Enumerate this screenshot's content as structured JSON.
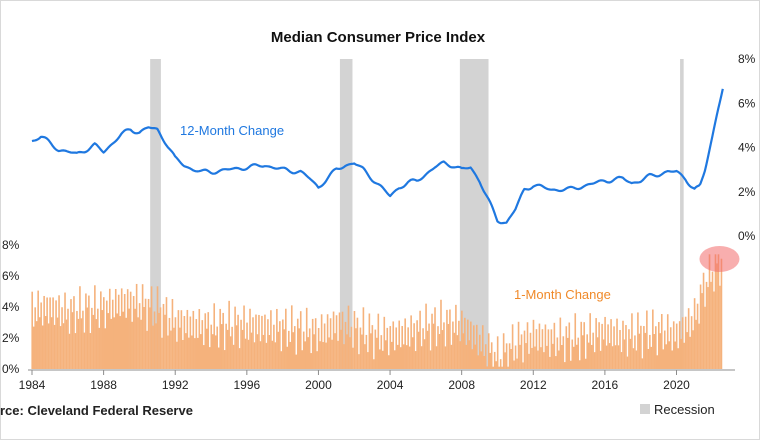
{
  "chart_data": {
    "type": "line",
    "title": "Median Consumer Price Index",
    "source": "rce: Cleveland Federal Reserve",
    "x_ticks": [
      "1984",
      "1988",
      "1992",
      "1996",
      "2000",
      "2004",
      "2008",
      "2012",
      "2016",
      "2020"
    ],
    "right_axis_ticks": [
      "0%",
      "2%",
      "4%",
      "6%",
      "8%"
    ],
    "left_axis_ticks": [
      "0%",
      "2%",
      "4%",
      "6%",
      "8%"
    ],
    "recession_legend": "Recession",
    "recessions": [
      [
        1990.6,
        1991.2
      ],
      [
        2001.2,
        2001.9
      ],
      [
        2007.9,
        2009.5
      ],
      [
        2020.2,
        2020.4
      ]
    ],
    "series": [
      {
        "name": "12-Month Change",
        "color": "#1f78e0",
        "axis": "right",
        "ylim": [
          0,
          8
        ],
        "x": [
          1984,
          1984.5,
          1985,
          1985.5,
          1986,
          1986.5,
          1987,
          1987.5,
          1988,
          1988.5,
          1989,
          1989.5,
          1990,
          1990.5,
          1991,
          1991.5,
          1992,
          1992.5,
          1993,
          1993.5,
          1994,
          1995,
          1996,
          1997,
          1998,
          1999,
          1999.5,
          2000,
          2000.5,
          2001,
          2001.5,
          2002,
          2002.5,
          2003,
          2003.5,
          2004,
          2004.5,
          2005,
          2005.5,
          2006,
          2006.5,
          2007,
          2007.5,
          2008,
          2008.5,
          2009,
          2009.5,
          2010,
          2010.5,
          2011,
          2011.5,
          2012,
          2012.5,
          2013,
          2014,
          2015,
          2016,
          2017,
          2017.5,
          2018,
          2018.5,
          2019,
          2019.5,
          2020,
          2020.5,
          2021,
          2021.3,
          2021.6,
          2022,
          2022.3,
          2022.6
        ],
        "values": [
          4.3,
          4.5,
          4.2,
          3.9,
          3.8,
          3.7,
          3.9,
          4.1,
          3.8,
          4.2,
          4.6,
          4.8,
          4.7,
          4.9,
          4.8,
          4.2,
          3.5,
          3.2,
          3.0,
          2.9,
          2.9,
          3.0,
          3.1,
          3.2,
          3.0,
          2.9,
          2.6,
          2.2,
          2.6,
          3.0,
          3.2,
          3.3,
          3.0,
          2.6,
          2.2,
          1.8,
          2.2,
          2.4,
          2.5,
          2.8,
          3.1,
          3.3,
          3.2,
          3.0,
          3.1,
          2.5,
          1.6,
          0.7,
          0.6,
          1.2,
          2.1,
          2.3,
          2.2,
          2.1,
          2.1,
          2.3,
          2.5,
          2.6,
          2.4,
          2.5,
          2.7,
          2.8,
          2.9,
          2.9,
          2.6,
          2.1,
          2.2,
          3.0,
          4.5,
          5.7,
          6.7
        ]
      },
      {
        "name": "1-Month Change",
        "color": "#f5b27c",
        "axis": "left",
        "type": "bar",
        "ylim": [
          0,
          8
        ],
        "x": [
          1984,
          1985,
          1986,
          1987,
          1988,
          1989,
          1990,
          1991,
          1992,
          1993,
          1994,
          1995,
          1996,
          1997,
          1998,
          1999,
          2000,
          2001,
          2002,
          2003,
          2004,
          2005,
          2006,
          2007,
          2008,
          2009,
          2010,
          2011,
          2012,
          2013,
          2014,
          2015,
          2016,
          2017,
          2018,
          2019,
          2020,
          2021,
          2021.5,
          2022,
          2022.5
        ],
        "values": [
          3.8,
          3.9,
          3.6,
          3.8,
          3.9,
          4.3,
          4.2,
          3.8,
          3.0,
          2.8,
          2.7,
          2.8,
          2.8,
          2.7,
          2.6,
          2.5,
          2.3,
          2.9,
          2.6,
          2.2,
          2.1,
          2.3,
          2.7,
          2.9,
          2.8,
          1.8,
          0.6,
          1.6,
          2.1,
          1.9,
          1.9,
          2.1,
          2.4,
          2.1,
          2.3,
          2.4,
          2.2,
          3.3,
          5.2,
          6.3,
          7.0
        ]
      }
    ],
    "highlight": {
      "x": 2022.4,
      "y": 7.1
    }
  }
}
